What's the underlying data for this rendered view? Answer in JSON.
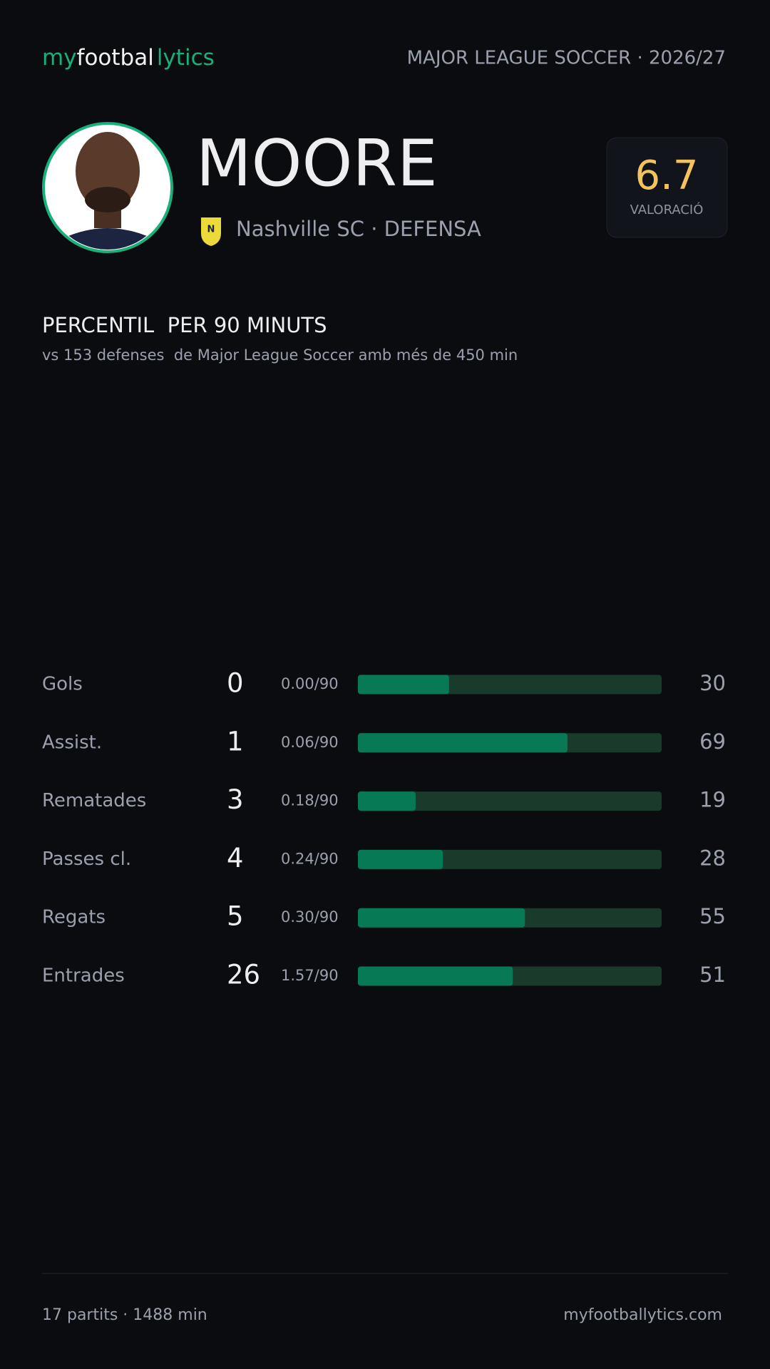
{
  "header": {
    "logo_parts": [
      "my",
      "footbal",
      "lytics"
    ],
    "league": "MAJOR LEAGUE SOCCER · 2026/27"
  },
  "player": {
    "name": "MOORE",
    "team_line": "Nashville SC · DEFENSA",
    "rating": "6.7",
    "rating_label": "VALORACIÓ"
  },
  "section": {
    "title": "PERCENTIL  PER 90 MINUTS",
    "subtitle": "vs 153 defenses  de Major League Soccer amb més de 450 min"
  },
  "chart_data": {
    "type": "bar",
    "orientation": "horizontal",
    "categories": [
      "Gols",
      "Assist.",
      "Rematades",
      "Passes cl.",
      "Regats",
      "Entrades"
    ],
    "totals": [
      0,
      1,
      3,
      4,
      5,
      26
    ],
    "per90_labels": [
      "0.00/90",
      "0.06/90",
      "0.18/90",
      "0.24/90",
      "0.30/90",
      "1.57/90"
    ],
    "values": [
      30,
      69,
      19,
      28,
      55,
      51
    ],
    "xlim": [
      0,
      100
    ],
    "color": "#077a55",
    "track_color": "#1a3a2c"
  },
  "footer": {
    "left": "17 partits · 1488 min",
    "right": "myfootballytics.com"
  }
}
